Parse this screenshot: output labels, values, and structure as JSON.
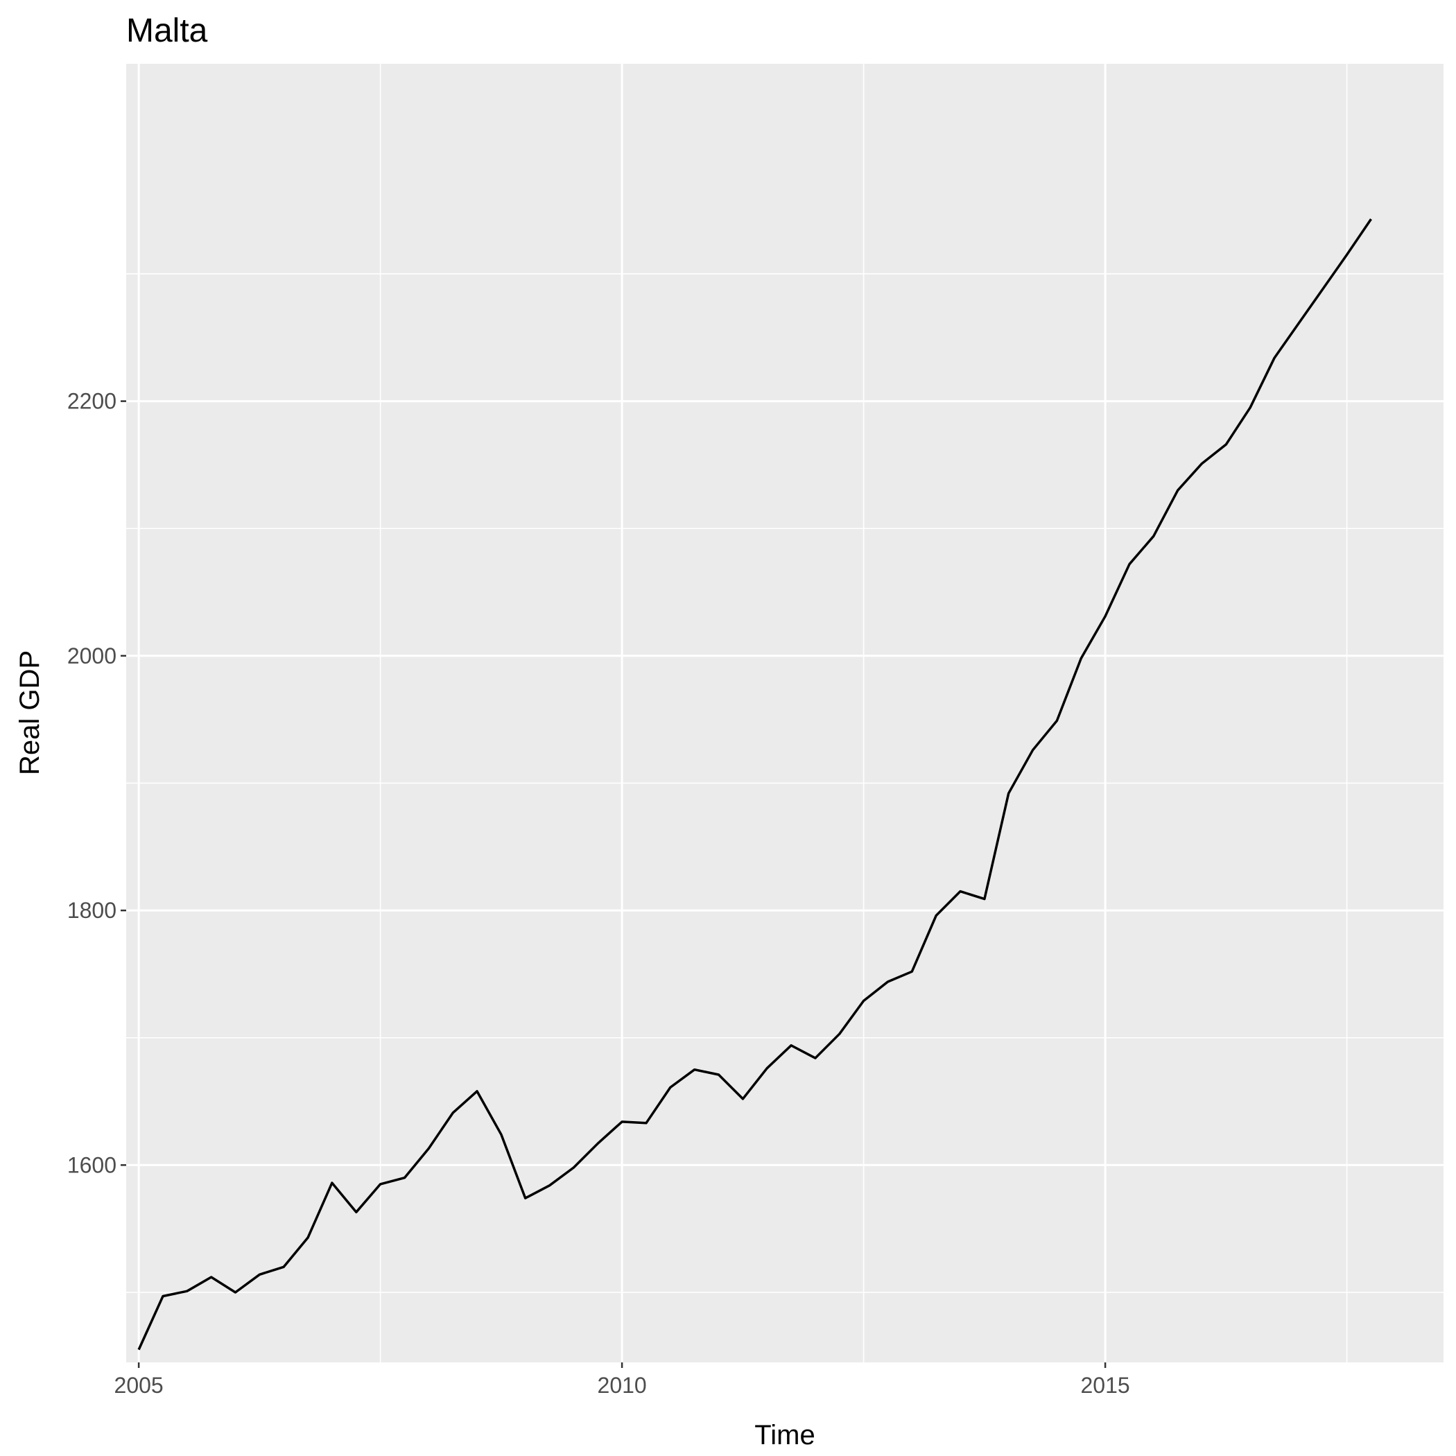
{
  "chart_data": {
    "type": "line",
    "title": "Malta",
    "xlabel": "Time",
    "ylabel": "Real GDP",
    "xlim": [
      2004.87,
      2018.5
    ],
    "ylim": [
      1445,
      2465
    ],
    "x_ticks": [
      2005,
      2010,
      2015
    ],
    "x_tick_labels": [
      "2005",
      "2010",
      "2015"
    ],
    "y_ticks": [
      1600,
      1800,
      2000,
      2200
    ],
    "y_tick_labels": [
      "1600",
      "1800",
      "2000",
      "2200"
    ],
    "grid": true,
    "legend": "none",
    "colors": {
      "panel": "#ebebeb",
      "grid": "#ffffff",
      "line": "#000000",
      "tick_text": "#4d4d4d"
    },
    "series": [
      {
        "x": [
          2005.0,
          2005.25,
          2005.5,
          2005.75,
          2006.0,
          2006.25,
          2006.5,
          2006.75,
          2007.0,
          2007.25,
          2007.5,
          2007.75,
          2008.0,
          2008.25,
          2008.5,
          2008.75,
          2009.0,
          2009.25,
          2009.5,
          2009.75,
          2010.0,
          2010.25,
          2010.5,
          2010.75,
          2011.0,
          2011.25,
          2011.5,
          2011.75,
          2012.0,
          2012.25,
          2012.5,
          2012.75,
          2013.0,
          2013.25,
          2013.5,
          2013.75,
          2014.0,
          2014.25,
          2014.5,
          2014.75,
          2015.0,
          2015.25,
          2015.5,
          2015.75,
          2016.0,
          2016.25,
          2016.5,
          2016.75,
          2017.0,
          2017.25,
          2017.5,
          2017.75
        ],
        "values": [
          1455,
          1497,
          1501,
          1512,
          1500,
          1514,
          1520,
          1543,
          1586,
          1563,
          1585,
          1590,
          1613,
          1641,
          1658,
          1624,
          1574,
          1584,
          1598,
          1617,
          1634,
          1633,
          1661,
          1675,
          1671,
          1652,
          1676,
          1694,
          1684,
          1703,
          1729,
          1744,
          1752,
          1796,
          1815,
          1809,
          1892,
          1926,
          1949,
          1998,
          2031,
          2072,
          2094,
          2130,
          2151,
          2166,
          2195,
          2234,
          2261,
          2288,
          2315,
          2343
        ]
      }
    ]
  }
}
